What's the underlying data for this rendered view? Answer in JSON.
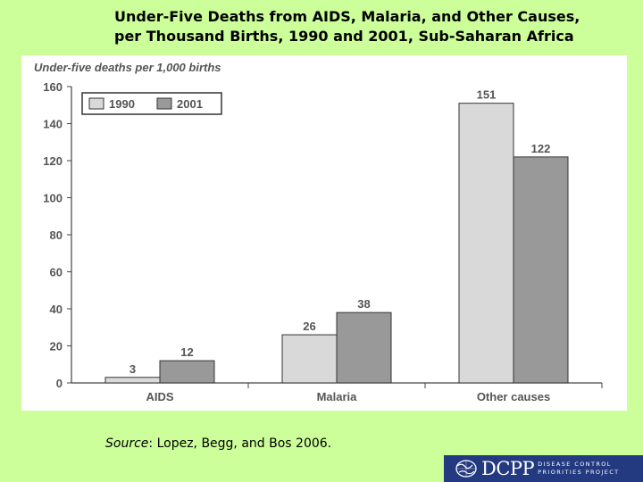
{
  "slide": {
    "title_line1": "Under-Five Deaths from AIDS, Malaria, and Other Causes,",
    "title_line2": "per Thousand Births, 1990 and 2001, Sub-Saharan Africa",
    "source_label": "Source",
    "source_text": ":  Lopez, Begg, and Bos 2006."
  },
  "logo": {
    "acronym": "DCPP",
    "line1": "DISEASE CONTROL",
    "line2": "PRIORITIES PROJECT"
  },
  "colors": {
    "background": "#ccff99",
    "series_1990": "#d9d9d9",
    "series_2001": "#999999",
    "logo_bg": "#243a80"
  },
  "chart_data": {
    "type": "bar",
    "title": "Under-five deaths per 1,000 births",
    "categories": [
      "AIDS",
      "Malaria",
      "Other causes"
    ],
    "series": [
      {
        "name": "1990",
        "values": [
          3,
          26,
          151
        ]
      },
      {
        "name": "2001",
        "values": [
          12,
          38,
          122
        ]
      }
    ],
    "ylim": [
      0,
      160
    ],
    "yticks": [
      0,
      20,
      40,
      60,
      80,
      100,
      120,
      140,
      160
    ],
    "legend": "top-left",
    "grid": false
  }
}
